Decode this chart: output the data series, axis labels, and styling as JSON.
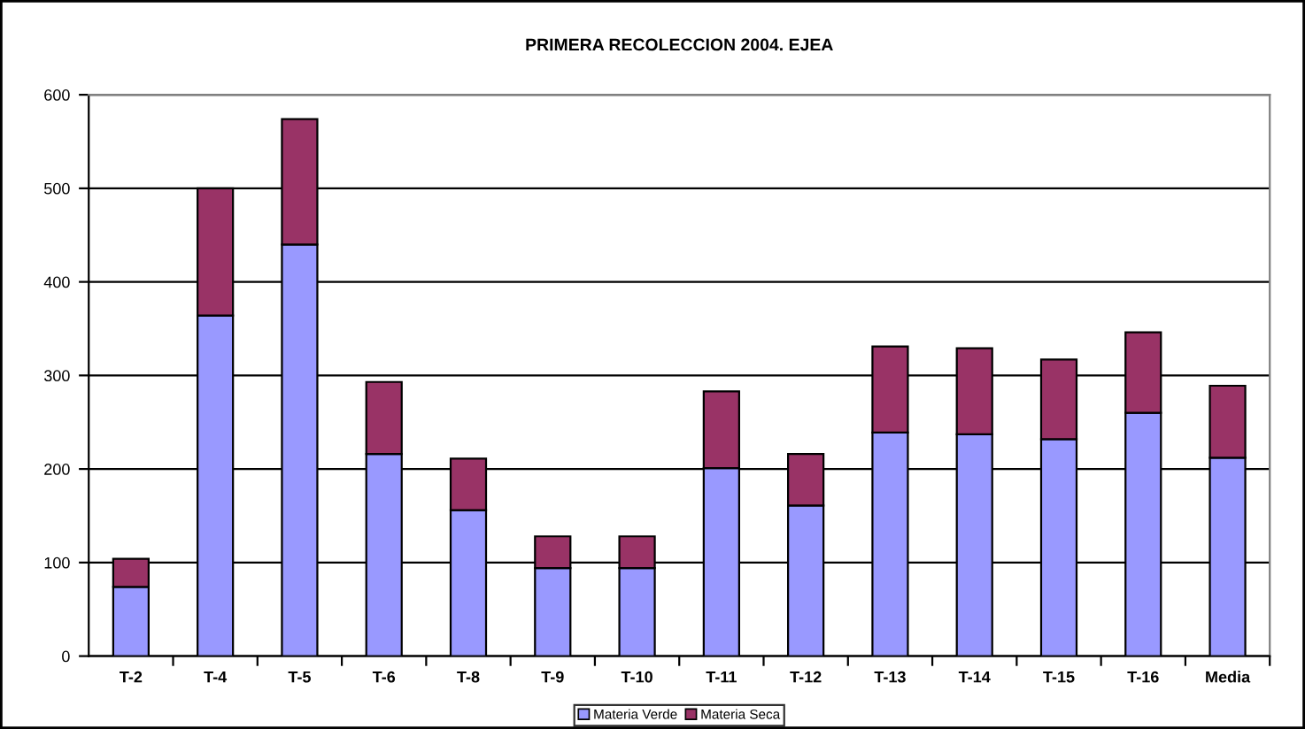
{
  "chart_data": {
    "type": "bar",
    "title": "PRIMERA RECOLECCION 2004. EJEA",
    "categories": [
      "T-2",
      "T-4",
      "T-5",
      "T-6",
      "T-8",
      "T-9",
      "T-10",
      "T-11",
      "T-12",
      "T-13",
      "T-14",
      "T-15",
      "T-16",
      "Media"
    ],
    "stacked": true,
    "series": [
      {
        "name": "Materia Verde",
        "color": "#9999ff",
        "values": [
          74,
          364,
          440,
          216,
          156,
          94,
          94,
          201,
          161,
          239,
          237,
          232,
          260,
          212
        ]
      },
      {
        "name": "Materia Seca",
        "color": "#993366",
        "values": [
          30,
          136,
          134,
          77,
          55,
          34,
          34,
          82,
          55,
          92,
          92,
          85,
          86,
          77
        ]
      }
    ],
    "ylim": [
      0,
      600
    ],
    "yticks": [
      0,
      100,
      200,
      300,
      400,
      500,
      600
    ],
    "grid": "y",
    "legend": "bottom"
  }
}
